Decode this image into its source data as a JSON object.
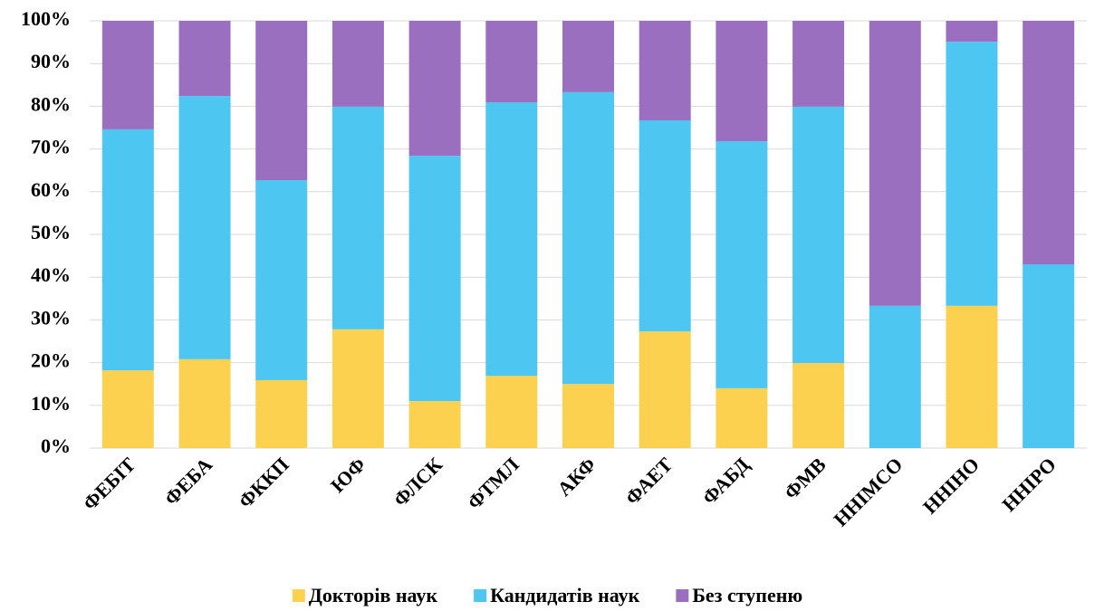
{
  "chart_data": {
    "type": "stacked_bar",
    "categories": [
      "ФЕБІТ",
      "ФЕБА",
      "ФККП",
      "ЮФ",
      "ФЛСК",
      "ФТМЛ",
      "АКФ",
      "ФАЕТ",
      "ФАБД",
      "ФМВ",
      "ННІМСО",
      "ННІНО",
      "ННІРО"
    ],
    "series": [
      {
        "name": "Докторів наук",
        "color": "#fdd150",
        "values": [
          18.2,
          20.8,
          15.9,
          27.8,
          11.0,
          16.9,
          15.0,
          27.3,
          14.0,
          19.9,
          0,
          33.3,
          0
        ]
      },
      {
        "name": "Кандидатів наук",
        "color": "#4dc6f2",
        "values": [
          56.4,
          61.6,
          46.8,
          52.1,
          57.4,
          64.0,
          68.3,
          49.4,
          57.8,
          60.0,
          33.3,
          61.8,
          43.0
        ]
      },
      {
        "name": "Без ступеню",
        "color": "#9b6fbf",
        "values": [
          25.4,
          17.6,
          37.3,
          20.1,
          31.6,
          19.1,
          16.7,
          23.3,
          28.2,
          20.1,
          66.7,
          4.9,
          57.0
        ]
      }
    ],
    "ylim": [
      0,
      100
    ],
    "yticks": [
      {
        "value": 0,
        "label": "0%"
      },
      {
        "value": 10,
        "label": "10%"
      },
      {
        "value": 20,
        "label": "20%"
      },
      {
        "value": 30,
        "label": "30%"
      },
      {
        "value": 40,
        "label": "40%"
      },
      {
        "value": 50,
        "label": "50%"
      },
      {
        "value": 60,
        "label": "60%"
      },
      {
        "value": 70,
        "label": "70%"
      },
      {
        "value": 80,
        "label": "80%"
      },
      {
        "value": 90,
        "label": "90%"
      },
      {
        "value": 100,
        "label": "100%"
      }
    ],
    "grid": true,
    "legend": "bottom"
  }
}
